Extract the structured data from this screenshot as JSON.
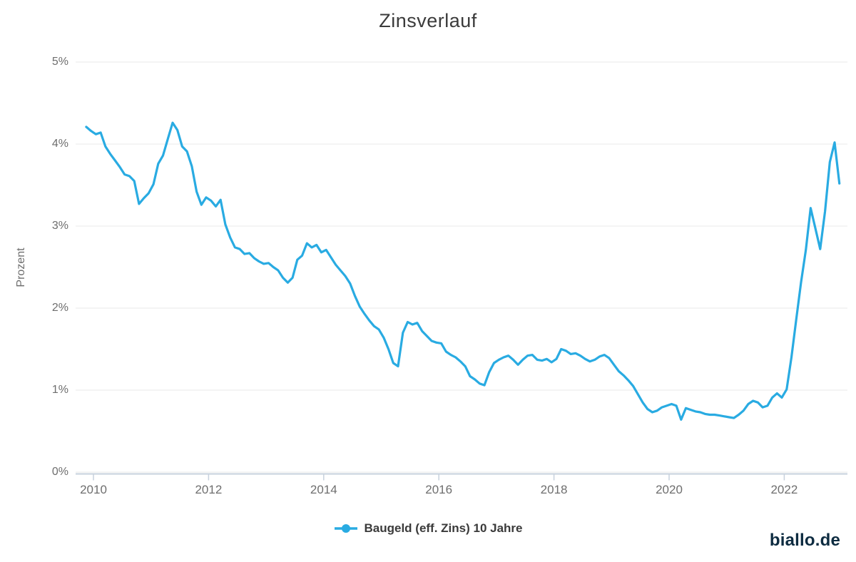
{
  "title": "Zinsverlauf",
  "y_axis": {
    "label": "Prozent",
    "tick_labels": [
      "5%",
      "4%",
      "3%",
      "2%",
      "1%",
      "0%"
    ],
    "tick_values": [
      5,
      4,
      3,
      2,
      1,
      0
    ]
  },
  "x_axis": {
    "tick_labels": [
      "2010",
      "2012",
      "2014",
      "2016",
      "2018",
      "2020",
      "2022"
    ],
    "tick_years": [
      2010,
      2012,
      2014,
      2016,
      2018,
      2020,
      2022
    ]
  },
  "legend": {
    "label": "Baugeld (eff. Zins) 10 Jahre"
  },
  "branding": {
    "text": "biallo.de",
    "color": "#0d2b40"
  },
  "colors": {
    "line": "#29abe2",
    "grid": "#e8e8e8",
    "axis": "#c7d1dd",
    "tick_text": "#6e6e6e",
    "title_text": "#3b3b3b",
    "legend_text": "#3a3a3a",
    "brand_text": "#0d2b40",
    "background": "#ffffff"
  },
  "chart_data": {
    "type": "line",
    "title": "Zinsverlauf",
    "xlabel": "",
    "ylabel": "Prozent",
    "ylim": [
      0,
      5
    ],
    "xlim": [
      2009.83,
      2023.05
    ],
    "grid": "horizontal",
    "legend_position": "bottom-center",
    "x_tick_years": [
      2010,
      2012,
      2014,
      2016,
      2018,
      2020,
      2022
    ],
    "y_tick_percent": [
      0,
      1,
      2,
      3,
      4,
      5
    ],
    "series": [
      {
        "name": "Baugeld (eff. Zins) 10 Jahre",
        "color": "#29abe2",
        "frequency": "monthly",
        "start": "2009-11",
        "end": "2022-12",
        "unit": "percent",
        "values": [
          4.21,
          4.16,
          4.12,
          4.14,
          3.97,
          3.88,
          3.8,
          3.72,
          3.63,
          3.61,
          3.55,
          3.27,
          3.34,
          3.4,
          3.51,
          3.76,
          3.86,
          4.06,
          4.26,
          4.17,
          3.97,
          3.91,
          3.73,
          3.42,
          3.26,
          3.35,
          3.31,
          3.24,
          3.32,
          3.02,
          2.86,
          2.74,
          2.72,
          2.66,
          2.67,
          2.61,
          2.57,
          2.54,
          2.55,
          2.5,
          2.46,
          2.37,
          2.31,
          2.37,
          2.59,
          2.64,
          2.79,
          2.74,
          2.77,
          2.68,
          2.71,
          2.62,
          2.53,
          2.46,
          2.39,
          2.3,
          2.15,
          2.02,
          1.93,
          1.85,
          1.78,
          1.74,
          1.64,
          1.5,
          1.33,
          1.29,
          1.7,
          1.83,
          1.8,
          1.82,
          1.72,
          1.66,
          1.6,
          1.58,
          1.57,
          1.47,
          1.43,
          1.4,
          1.35,
          1.29,
          1.17,
          1.13,
          1.08,
          1.06,
          1.22,
          1.33,
          1.37,
          1.4,
          1.42,
          1.37,
          1.31,
          1.37,
          1.42,
          1.43,
          1.37,
          1.36,
          1.38,
          1.34,
          1.38,
          1.5,
          1.48,
          1.44,
          1.45,
          1.42,
          1.38,
          1.35,
          1.37,
          1.41,
          1.43,
          1.39,
          1.31,
          1.23,
          1.18,
          1.12,
          1.05,
          0.95,
          0.85,
          0.77,
          0.73,
          0.75,
          0.79,
          0.81,
          0.83,
          0.81,
          0.64,
          0.78,
          0.76,
          0.74,
          0.73,
          0.71,
          0.7,
          0.7,
          0.69,
          0.68,
          0.67,
          0.66,
          0.7,
          0.75,
          0.83,
          0.87,
          0.85,
          0.79,
          0.81,
          0.91,
          0.96,
          0.91,
          1.01,
          1.4,
          1.86,
          2.31,
          2.71,
          3.22,
          2.97,
          2.72,
          3.18,
          3.78,
          4.02,
          3.52
        ]
      }
    ]
  }
}
